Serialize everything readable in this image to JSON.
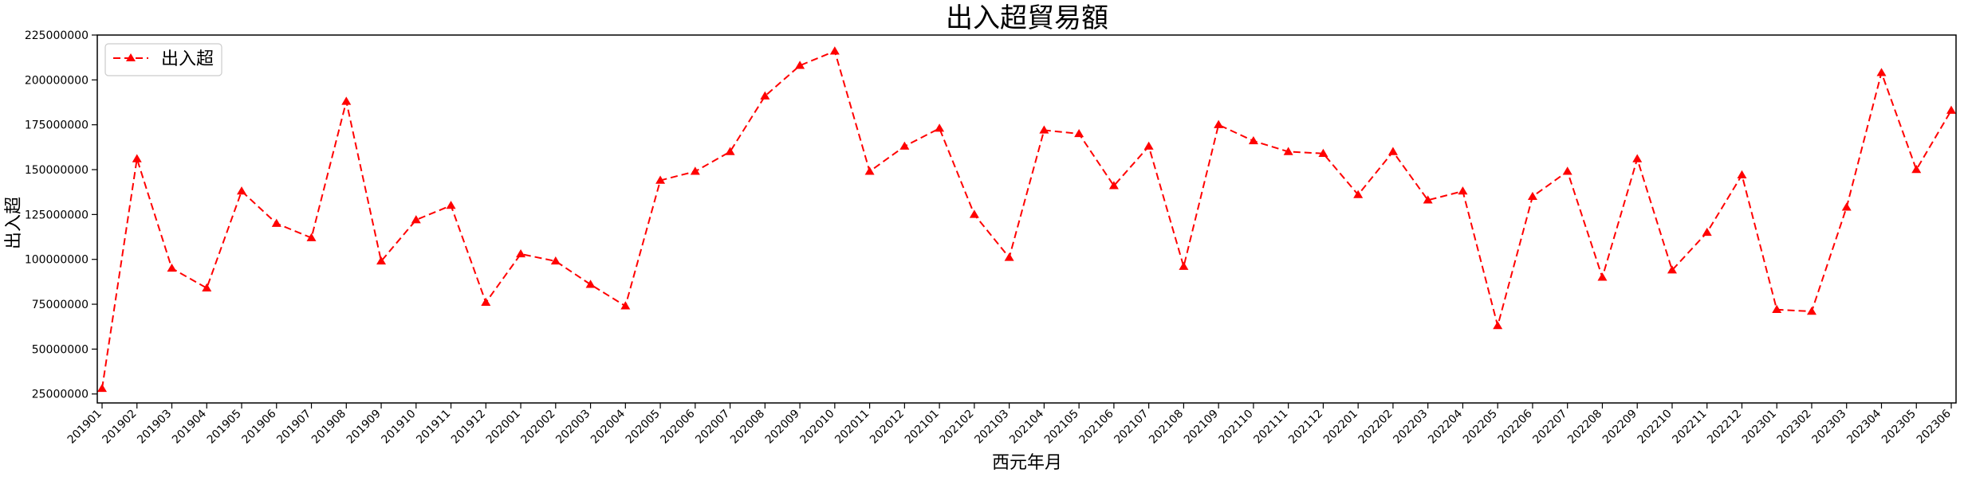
{
  "chart_data": {
    "type": "line",
    "title": "出入超貿易額",
    "xlabel": "西元年月",
    "ylabel": "出入超",
    "ylim": [
      20000000,
      225000000
    ],
    "yticks": [
      "25000000",
      "50000000",
      "75000000",
      "100000000",
      "125000000",
      "150000000",
      "175000000",
      "200000000",
      "225000000"
    ],
    "legend_position": "top-left",
    "grid": false,
    "categories": [
      "201901",
      "201902",
      "201903",
      "201904",
      "201905",
      "201906",
      "201907",
      "201908",
      "201909",
      "201910",
      "201911",
      "201912",
      "202001",
      "202002",
      "202003",
      "202004",
      "202005",
      "202006",
      "202007",
      "202008",
      "202009",
      "202010",
      "202011",
      "202012",
      "202101",
      "202102",
      "202103",
      "202104",
      "202105",
      "202106",
      "202107",
      "202108",
      "202109",
      "202110",
      "202111",
      "202112",
      "202201",
      "202202",
      "202203",
      "202204",
      "202205",
      "202206",
      "202207",
      "202208",
      "202209",
      "202210",
      "202211",
      "202212",
      "202301",
      "202302",
      "202303",
      "202304",
      "202305",
      "202306"
    ],
    "series": [
      {
        "name": "出入超",
        "color": "#ff0000",
        "line_style": "dashed",
        "marker": "triangle",
        "values": [
          28000000,
          156000000,
          95000000,
          84000000,
          138000000,
          120000000,
          112000000,
          188000000,
          99000000,
          122000000,
          130000000,
          76000000,
          103000000,
          99000000,
          86000000,
          74000000,
          144000000,
          149000000,
          160000000,
          191000000,
          208000000,
          216000000,
          149000000,
          163000000,
          173000000,
          125000000,
          101000000,
          172000000,
          170000000,
          141000000,
          163000000,
          96000000,
          175000000,
          166000000,
          160000000,
          159000000,
          136000000,
          160000000,
          133000000,
          138000000,
          63000000,
          135000000,
          149000000,
          90000000,
          156000000,
          94000000,
          115000000,
          147000000,
          72000000,
          71000000,
          129000000,
          204000000,
          150000000,
          183000000
        ]
      }
    ]
  }
}
